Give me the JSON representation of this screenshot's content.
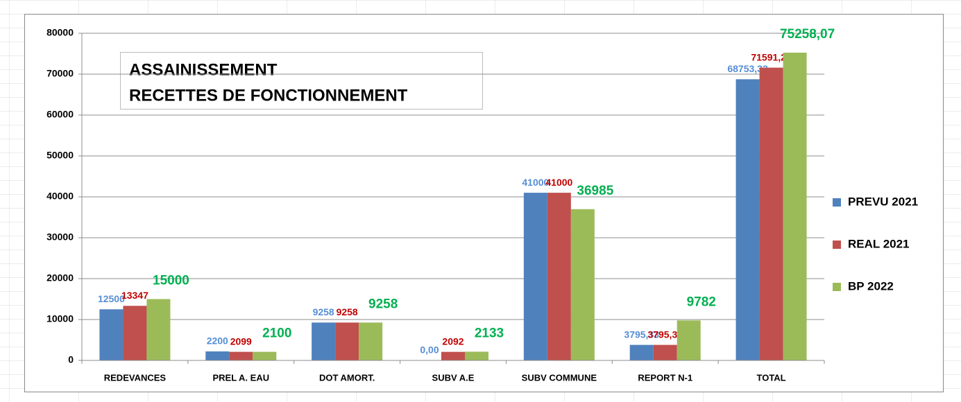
{
  "chart_data": {
    "type": "bar",
    "title": [
      "ASSAINISSEMENT",
      "RECETTES DE FONCTIONNEMENT"
    ],
    "categories": [
      "REDEVANCES",
      "PREL A. EAU",
      "DOT AMORT.",
      "SUBV A.E",
      "SUBV COMMUNE",
      "REPORT N-1",
      "TOTAL"
    ],
    "series": [
      {
        "name": "PREVU 2021",
        "color": "#4f81bd",
        "label_color": "#558ed5",
        "values": [
          12500,
          2200,
          9258,
          0,
          41000,
          3795.33,
          68753.33
        ],
        "value_labels": [
          "12500",
          "2200",
          "9258",
          "0,00",
          "41000",
          "3795,33",
          "68753,33"
        ]
      },
      {
        "name": "REAL 2021",
        "color": "#c0504d",
        "label_color": "#c00000",
        "values": [
          13347,
          2099,
          9258,
          2092,
          41000,
          3795.33,
          71591.25
        ],
        "value_labels": [
          "13347",
          "2099",
          "9258",
          "2092",
          "41000",
          "3795,33",
          "71591,25"
        ]
      },
      {
        "name": "BP 2022",
        "color": "#9bbb59",
        "label_color": "#00b050",
        "values": [
          15000,
          2100,
          9258,
          2133,
          36985,
          9782,
          75258.07
        ],
        "value_labels": [
          "15000",
          "2100",
          "9258",
          "2133",
          "36985",
          "9782",
          "75258,07"
        ]
      }
    ],
    "ylim": [
      0,
      80000
    ],
    "yticks": [
      0,
      10000,
      20000,
      30000,
      40000,
      50000,
      60000,
      70000,
      80000
    ],
    "grid": true,
    "legend": "right"
  }
}
